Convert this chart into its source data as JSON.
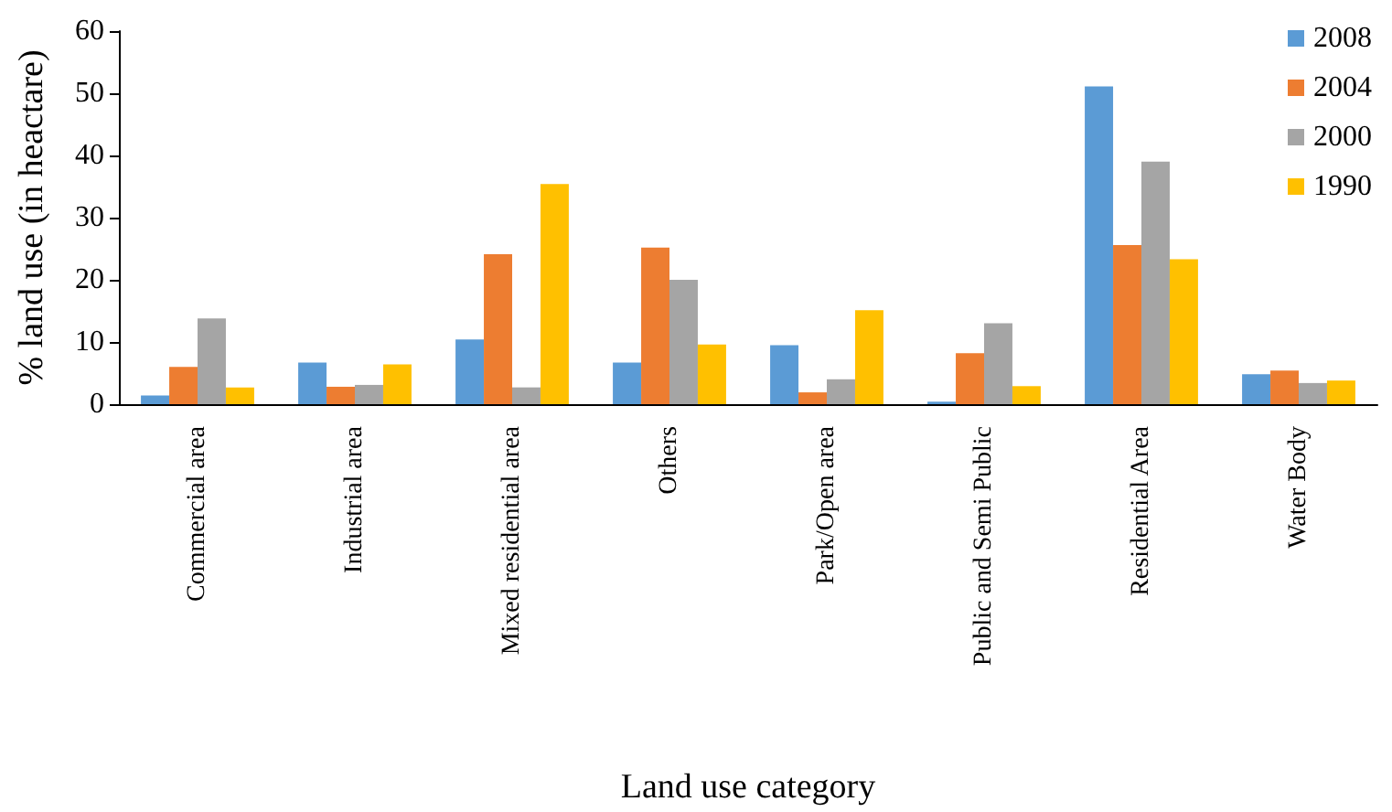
{
  "chart_data": {
    "type": "bar",
    "xlabel": "Land use category",
    "ylabel": "% land use (in heactare)",
    "categories": [
      "Commercial area",
      "Industrial area",
      "Mixed residential area",
      "Others",
      "Park/Open area",
      "Public and Semi Public",
      "Residential Area",
      "Water Body"
    ],
    "series": [
      {
        "name": "2008",
        "color": "#5b9bd5",
        "values": [
          1.4,
          6.7,
          10.4,
          6.7,
          9.5,
          0.4,
          51.1,
          4.8
        ]
      },
      {
        "name": "2004",
        "color": "#ed7d31",
        "values": [
          6.0,
          2.8,
          24.1,
          25.2,
          1.9,
          8.2,
          25.6,
          5.4
        ]
      },
      {
        "name": "2000",
        "color": "#a5a5a5",
        "values": [
          13.8,
          3.1,
          2.7,
          20.0,
          4.0,
          13.0,
          39.0,
          3.4
        ]
      },
      {
        "name": "1990",
        "color": "#ffc000",
        "values": [
          2.7,
          6.4,
          35.4,
          9.6,
          15.1,
          2.9,
          23.3,
          3.8
        ]
      }
    ],
    "ylim": [
      0,
      60
    ],
    "yticks": [
      0,
      10,
      20,
      30,
      40,
      50,
      60
    ],
    "grid": false,
    "legend": "top right"
  }
}
